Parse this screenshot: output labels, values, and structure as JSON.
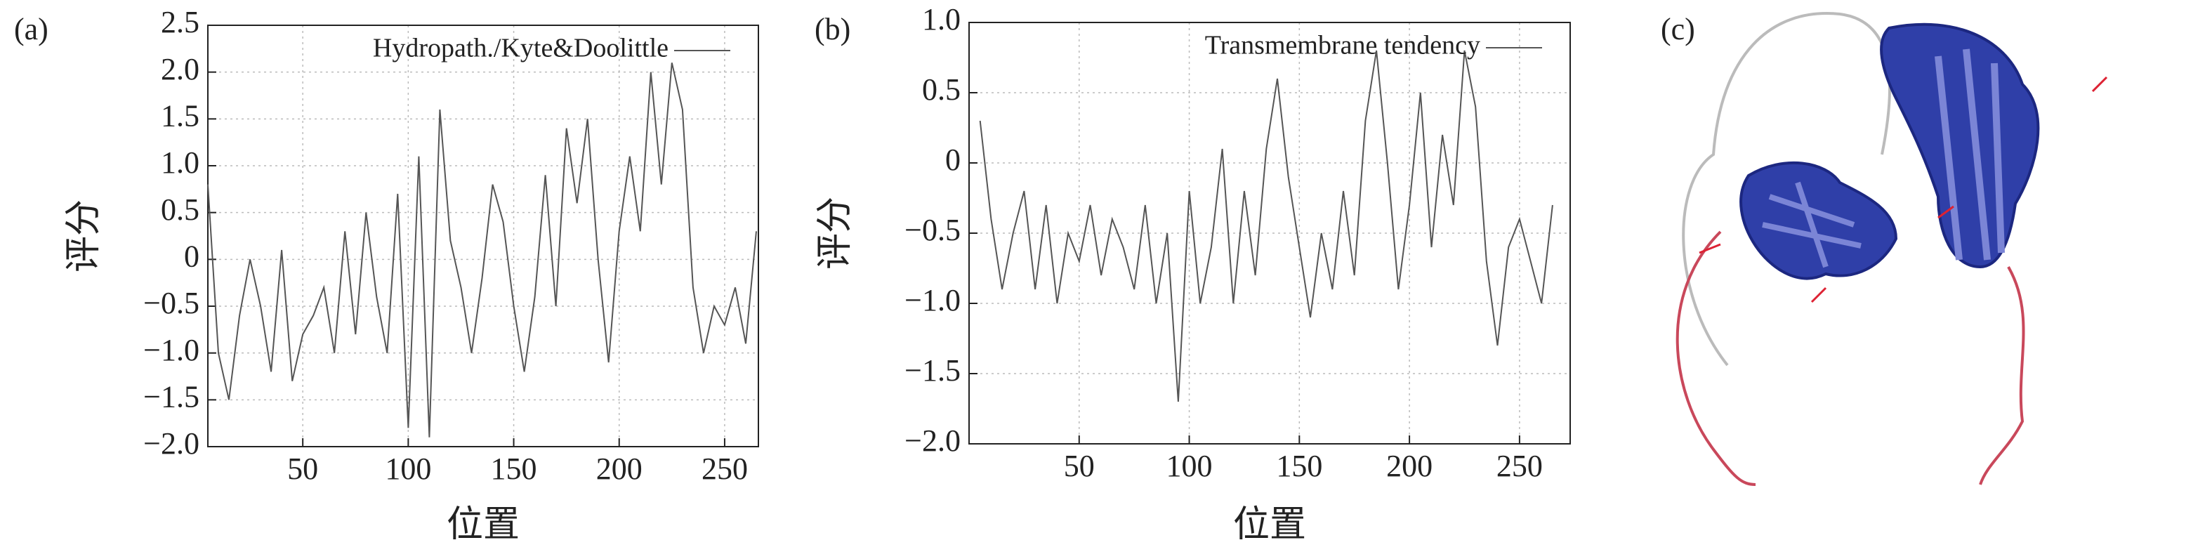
{
  "chart_data": [
    {
      "type": "line",
      "panel_label": "(a)",
      "xlabel": "位置",
      "ylabel": "评分",
      "x": [
        5,
        10,
        15,
        20,
        25,
        30,
        35,
        40,
        45,
        50,
        55,
        60,
        65,
        70,
        75,
        80,
        85,
        90,
        95,
        100,
        105,
        110,
        115,
        120,
        125,
        130,
        135,
        140,
        145,
        150,
        155,
        160,
        165,
        170,
        175,
        180,
        185,
        190,
        195,
        200,
        205,
        210,
        215,
        220,
        225,
        230,
        235,
        240,
        245,
        250,
        255,
        260,
        265
      ],
      "series": [
        {
          "name": "Hydropath./Kyte&Doolittle",
          "color": "#555555",
          "values": [
            0.8,
            -1.0,
            -1.5,
            -0.6,
            0,
            -0.5,
            -1.2,
            0.1,
            -1.3,
            -0.8,
            -0.6,
            -0.3,
            -1.0,
            0.3,
            -0.8,
            0.5,
            -0.4,
            -1.0,
            0.7,
            -1.8,
            1.1,
            -1.9,
            1.6,
            0.2,
            -0.3,
            -1.0,
            -0.2,
            0.8,
            0.4,
            -0.5,
            -1.2,
            -0.4,
            0.9,
            -0.5,
            1.4,
            0.6,
            1.5,
            0,
            -1.1,
            0.3,
            1.1,
            0.3,
            2.0,
            0.8,
            2.1,
            1.6,
            -0.3,
            -1.0,
            -0.5,
            -0.7,
            -0.3,
            -0.9,
            0.3
          ]
        }
      ],
      "xlim": [
        5,
        266
      ],
      "xticks": [
        50,
        100,
        150,
        200,
        250
      ],
      "ylim": [
        -2,
        2.5
      ],
      "yticks": [
        {
          "value": -2,
          "label": "−2.0"
        },
        {
          "value": -1.5,
          "label": "−1.5"
        },
        {
          "value": -1,
          "label": "−1.0"
        },
        {
          "value": -0.5,
          "label": "−0.5"
        },
        0,
        0.5,
        {
          "value": 1,
          "label": "1.0"
        },
        1.5,
        {
          "value": 2,
          "label": "2.0"
        },
        2.5
      ],
      "grid": true
    },
    {
      "type": "line",
      "panel_label": "(b)",
      "xlabel": "位置",
      "ylabel": "评分",
      "x": [
        5,
        10,
        15,
        20,
        25,
        30,
        35,
        40,
        45,
        50,
        55,
        60,
        65,
        70,
        75,
        80,
        85,
        90,
        95,
        100,
        105,
        110,
        115,
        120,
        125,
        130,
        135,
        140,
        145,
        150,
        155,
        160,
        165,
        170,
        175,
        180,
        185,
        190,
        195,
        200,
        205,
        210,
        215,
        220,
        225,
        230,
        235,
        240,
        245,
        250,
        255,
        260,
        265
      ],
      "series": [
        {
          "name": "Transmembrane tendency",
          "color": "#555555",
          "values": [
            0.3,
            -0.4,
            -0.9,
            -0.5,
            -0.2,
            -0.9,
            -0.3,
            -1.0,
            -0.5,
            -0.7,
            -0.3,
            -0.8,
            -0.4,
            -0.6,
            -0.9,
            -0.3,
            -1.0,
            -0.5,
            -1.7,
            -0.2,
            -1.0,
            -0.6,
            0.1,
            -1.0,
            -0.2,
            -0.8,
            0.1,
            0.6,
            -0.1,
            -0.6,
            -1.1,
            -0.5,
            -0.9,
            -0.2,
            -0.8,
            0.3,
            0.8,
            0,
            -0.9,
            -0.3,
            0.5,
            -0.6,
            0.2,
            -0.3,
            0.8,
            0.4,
            -0.7,
            -1.3,
            -0.6,
            -0.4,
            -0.7,
            -1.0,
            -0.3
          ]
        }
      ],
      "xlim": [
        0,
        273
      ],
      "xticks": [
        50,
        100,
        150,
        200,
        250
      ],
      "ylim": [
        -2,
        1
      ],
      "yticks": [
        {
          "value": -2,
          "label": "−2.0"
        },
        {
          "value": -1.5,
          "label": "−1.5"
        },
        {
          "value": -1,
          "label": "−1.0"
        },
        {
          "value": -0.5,
          "label": "−0.5"
        },
        0,
        0.5,
        {
          "value": 1,
          "label": "1.0"
        }
      ],
      "grid": true
    }
  ],
  "panel_c": {
    "label": "(c)"
  }
}
